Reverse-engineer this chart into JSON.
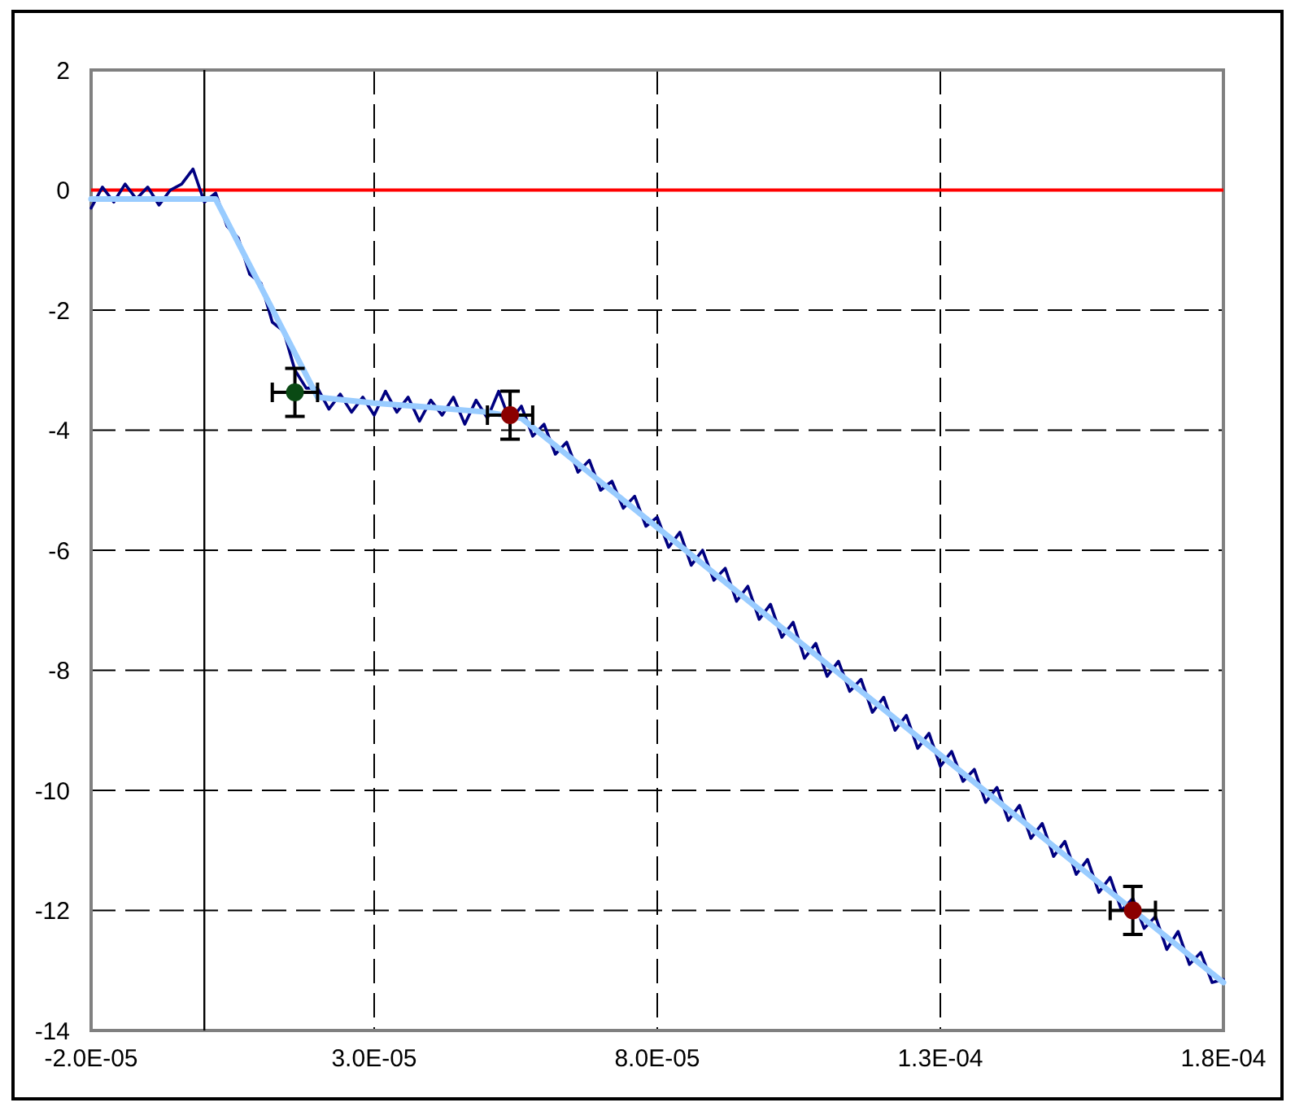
{
  "chart_data": {
    "type": "line",
    "xlim": [
      -2e-05,
      0.00018
    ],
    "xticks": [
      {
        "value": -2e-05,
        "label": "-2.0E-05"
      },
      {
        "value": 3e-05,
        "label": "3.0E-05"
      },
      {
        "value": 8e-05,
        "label": "8.0E-05"
      },
      {
        "value": 0.00013,
        "label": "1.3E-04"
      },
      {
        "value": 0.00018,
        "label": "1.8E-04"
      }
    ],
    "ylim": [
      -14,
      2
    ],
    "yticks": [
      -14,
      -12,
      -10,
      -8,
      -6,
      -4,
      -2,
      0,
      2
    ],
    "grid": true,
    "ref_lines": [
      {
        "axis": "y",
        "value": 0,
        "color": "#ff0000"
      },
      {
        "axis": "x",
        "value": 0,
        "color": "#000000"
      }
    ],
    "series": [
      {
        "color": "#000080",
        "x": [
          -2e-05,
          -1.8e-05,
          -1.6e-05,
          -1.4e-05,
          -1.2e-05,
          -1e-05,
          -8e-06,
          -6e-06,
          -4e-06,
          -2e-06,
          0,
          2e-06,
          4e-06,
          6e-06,
          8e-06,
          1e-05,
          1.2e-05,
          1.4e-05,
          1.6e-05,
          1.8e-05,
          2e-05,
          2.2e-05,
          2.4e-05,
          2.6e-05,
          2.8e-05,
          3e-05,
          3.2e-05,
          3.4e-05,
          3.6e-05,
          3.8e-05,
          4e-05,
          4.2e-05,
          4.4e-05,
          4.6e-05,
          4.8e-05,
          5e-05,
          5.2e-05,
          5.4e-05,
          5.6e-05,
          5.8e-05,
          6e-05,
          6.2e-05,
          6.4e-05,
          6.6e-05,
          6.8e-05,
          7e-05,
          7.2e-05,
          7.4e-05,
          7.6e-05,
          7.8e-05,
          8e-05,
          8.2e-05,
          8.4e-05,
          8.6e-05,
          8.8e-05,
          9e-05,
          9.2e-05,
          9.4e-05,
          9.6e-05,
          9.8e-05,
          0.0001,
          0.000102,
          0.000104,
          0.000106,
          0.000108,
          0.00011,
          0.000112,
          0.000114,
          0.000116,
          0.000118,
          0.00012,
          0.000122,
          0.000124,
          0.000126,
          0.000128,
          0.00013,
          0.000132,
          0.000134,
          0.000136,
          0.000138,
          0.00014,
          0.000142,
          0.000144,
          0.000146,
          0.000148,
          0.00015,
          0.000152,
          0.000154,
          0.000156,
          0.000158,
          0.00016,
          0.000162,
          0.000164,
          0.000166,
          0.000168,
          0.00017,
          0.000172,
          0.000174,
          0.000176,
          0.000178,
          0.00018
        ],
        "values": [
          -0.3,
          0.05,
          -0.2,
          0.1,
          -0.15,
          0.05,
          -0.25,
          0.0,
          0.1,
          0.35,
          -0.2,
          -0.05,
          -0.6,
          -0.8,
          -1.4,
          -1.55,
          -2.2,
          -2.35,
          -3.0,
          -3.3,
          -3.3,
          -3.65,
          -3.4,
          -3.7,
          -3.45,
          -3.75,
          -3.35,
          -3.7,
          -3.45,
          -3.85,
          -3.5,
          -3.75,
          -3.45,
          -3.9,
          -3.5,
          -3.8,
          -3.35,
          -3.85,
          -3.6,
          -4.1,
          -3.9,
          -4.4,
          -4.2,
          -4.7,
          -4.5,
          -5.0,
          -4.85,
          -5.3,
          -5.1,
          -5.6,
          -5.45,
          -5.95,
          -5.7,
          -6.25,
          -6.0,
          -6.5,
          -6.3,
          -6.85,
          -6.6,
          -7.15,
          -6.9,
          -7.45,
          -7.2,
          -7.8,
          -7.55,
          -8.1,
          -7.85,
          -8.35,
          -8.15,
          -8.7,
          -8.45,
          -9.0,
          -8.75,
          -9.3,
          -9.05,
          -9.6,
          -9.35,
          -9.85,
          -9.65,
          -10.2,
          -9.95,
          -10.5,
          -10.25,
          -10.8,
          -10.55,
          -11.1,
          -10.85,
          -11.4,
          -11.15,
          -11.7,
          -11.45,
          -12.0,
          -11.8,
          -12.3,
          -12.1,
          -12.65,
          -12.35,
          -12.9,
          -12.7,
          -13.2,
          -13.15
        ]
      },
      {
        "color": "#99ccff",
        "x": [
          -2e-05,
          0,
          2e-06,
          2e-05,
          3e-05,
          4e-05,
          5e-05,
          5.6e-05,
          8e-05,
          0.0001,
          0.00012,
          0.00014,
          0.00016,
          0.00018
        ],
        "values": [
          -0.15,
          -0.15,
          -0.15,
          -3.45,
          -3.55,
          -3.62,
          -3.7,
          -3.8,
          -5.62,
          -7.14,
          -8.65,
          -10.17,
          -11.69,
          -13.2
        ]
      },
      {
        "type": "scatter",
        "marker": "circle",
        "colors": [
          "#0a4a14",
          "#8b0000",
          "#8b0000"
        ],
        "x": [
          1.6e-05,
          5.4e-05,
          0.000164
        ],
        "values": [
          -3.37,
          -3.75,
          -12.0
        ],
        "errors": [
          0.4,
          0.4,
          0.4
        ],
        "xerrors": [
          4e-06,
          4e-06,
          4e-06
        ]
      }
    ]
  }
}
